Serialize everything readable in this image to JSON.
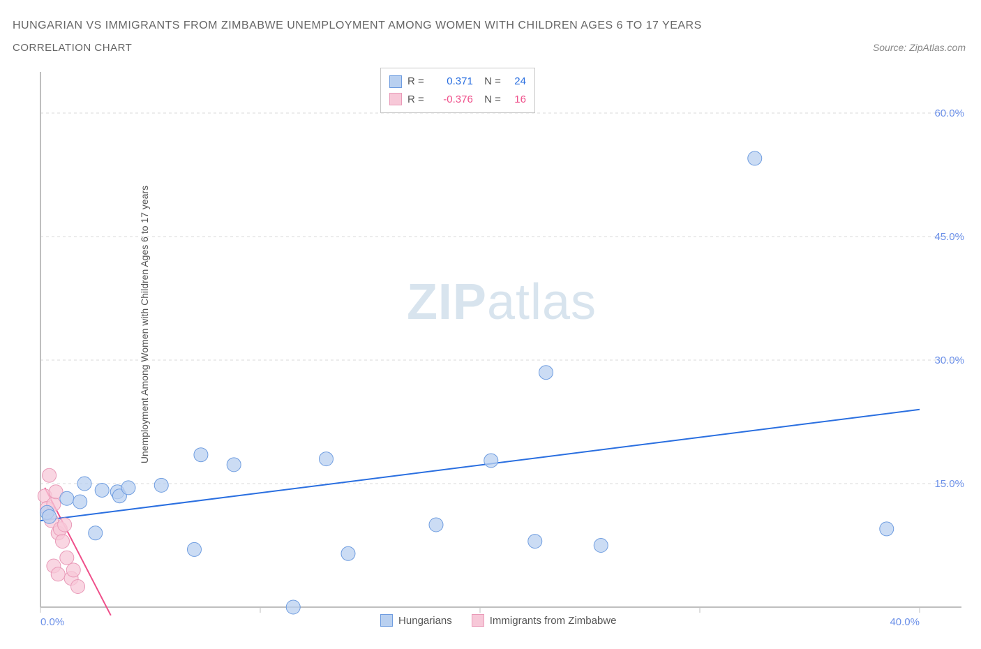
{
  "title_main": "HUNGARIAN VS IMMIGRANTS FROM ZIMBABWE UNEMPLOYMENT AMONG WOMEN WITH CHILDREN AGES 6 TO 17 YEARS",
  "title_sub": "CORRELATION CHART",
  "source_label": "Source: ZipAtlas.com",
  "y_axis_label": "Unemployment Among Women with Children Ages 6 to 17 years",
  "watermark": {
    "prefix": "ZIP",
    "suffix": "atlas"
  },
  "colors": {
    "series_blue_fill": "#b9d0f0",
    "series_blue_stroke": "#6f9de0",
    "series_pink_fill": "#f7c8d8",
    "series_pink_stroke": "#e99ab8",
    "trend_blue": "#2a6fe0",
    "trend_pink": "#ef4f8a",
    "stat_blue": "#2a6fe0",
    "stat_pink": "#ef4f8a",
    "tick_label": "#6a8fe8",
    "grid": "#d8d8d8",
    "axis": "#bfbfbf",
    "text": "#666666",
    "bg": "#ffffff"
  },
  "chart": {
    "xlim": [
      0,
      40
    ],
    "ylim": [
      0,
      65
    ],
    "xticks": [
      0,
      10,
      20,
      30,
      40
    ],
    "xtick_labels": [
      "0.0%",
      "",
      "",
      "",
      "40.0%"
    ],
    "yticks": [
      15,
      30,
      45,
      60
    ],
    "ytick_labels": [
      "15.0%",
      "30.0%",
      "45.0%",
      "60.0%"
    ],
    "marker_radius": 10,
    "line_width": 2
  },
  "stats": {
    "blue": {
      "r": "0.371",
      "n": "24"
    },
    "pink": {
      "r": "-0.376",
      "n": "16"
    }
  },
  "legend_bottom": {
    "blue_label": "Hungarians",
    "pink_label": "Immigrants from Zimbabwe"
  },
  "series_blue": {
    "points": [
      [
        0.3,
        11.5
      ],
      [
        0.4,
        11.0
      ],
      [
        2.0,
        15.0
      ],
      [
        2.5,
        9.0
      ],
      [
        3.5,
        14.0
      ],
      [
        3.6,
        13.5
      ],
      [
        4.0,
        14.5
      ],
      [
        5.5,
        14.8
      ],
      [
        7.3,
        18.5
      ],
      [
        8.8,
        17.3
      ],
      [
        7.0,
        7.0
      ],
      [
        13.0,
        18.0
      ],
      [
        11.5,
        0.0
      ],
      [
        14.0,
        6.5
      ],
      [
        18.0,
        10.0
      ],
      [
        20.5,
        17.8
      ],
      [
        23.0,
        28.5
      ],
      [
        22.5,
        8.0
      ],
      [
        25.5,
        7.5
      ],
      [
        32.5,
        54.5
      ],
      [
        38.5,
        9.5
      ],
      [
        1.2,
        13.2
      ],
      [
        1.8,
        12.8
      ],
      [
        2.8,
        14.2
      ]
    ],
    "trend": {
      "x1": 0,
      "y1": 10.5,
      "x2": 40,
      "y2": 24.0
    }
  },
  "series_pink": {
    "points": [
      [
        0.2,
        13.5
      ],
      [
        0.3,
        12.0
      ],
      [
        0.4,
        16.0
      ],
      [
        0.5,
        10.5
      ],
      [
        0.6,
        12.5
      ],
      [
        0.7,
        14.0
      ],
      [
        0.8,
        9.0
      ],
      [
        0.9,
        9.5
      ],
      [
        1.0,
        8.0
      ],
      [
        1.1,
        10.0
      ],
      [
        0.6,
        5.0
      ],
      [
        0.8,
        4.0
      ],
      [
        1.2,
        6.0
      ],
      [
        1.4,
        3.5
      ],
      [
        1.5,
        4.5
      ],
      [
        1.7,
        2.5
      ]
    ],
    "trend": {
      "x1": 0.2,
      "y1": 14.5,
      "x2": 3.2,
      "y2": -1.0
    }
  }
}
